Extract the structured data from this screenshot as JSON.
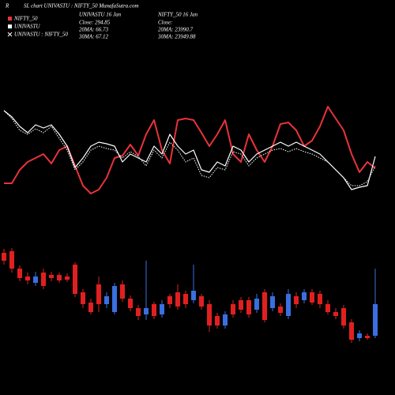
{
  "chart_data": {
    "type": "line_candlestick",
    "title_parts": [
      "R",
      "SL chart UNIVASTU : NIFTY_50 MunafaSutra.com"
    ],
    "legend": [
      {
        "name": "NIFTY_50",
        "symbol": "square",
        "color": "#e8333a"
      },
      {
        "name": "UNIVASTU",
        "symbol": "square",
        "color": "#ffffff"
      },
      {
        "name": "UNIVASTU : NIFTY_50",
        "symbol": "cross",
        "color": "#ffffff"
      }
    ],
    "info": [
      {
        "title": "UNIVASTU 16 Jan",
        "lines": [
          "Close: 294.85",
          "20MA: 66.73",
          "30MA: 67.12"
        ]
      },
      {
        "title": "NIFTY_50 16 Jan",
        "lines": [
          "Close:",
          "20MA: 23990.7",
          "30MA: 23949.88"
        ]
      }
    ],
    "ylim": [
      0,
      130
    ],
    "series": [
      {
        "color": "#e8333a",
        "style": "solid",
        "width": 2,
        "values": [
          28,
          28,
          45,
          55,
          60,
          65,
          53,
          70,
          75,
          50,
          25,
          15,
          20,
          35,
          60,
          63,
          77,
          63,
          90,
          108,
          70,
          53,
          108,
          110,
          108,
          92,
          75,
          90,
          108,
          65,
          55,
          90,
          70,
          55,
          75,
          103,
          105,
          95,
          75,
          82,
          100,
          125,
          110,
          95,
          65,
          42,
          55,
          47
        ]
      },
      {
        "color": "#ffffff",
        "style": "solid",
        "width": 1.2,
        "values": [
          120,
          112,
          100,
          92,
          102,
          98,
          102,
          90,
          75,
          48,
          60,
          75,
          80,
          78,
          75,
          55,
          65,
          60,
          55,
          75,
          65,
          90,
          75,
          65,
          70,
          45,
          42,
          55,
          50,
          75,
          70,
          55,
          65,
          70,
          75,
          80,
          75,
          80,
          75,
          70,
          65,
          55,
          45,
          35,
          20,
          23,
          25,
          62
        ]
      },
      {
        "color": "#ffffff",
        "style": "dotted",
        "width": 1,
        "values": [
          120,
          110,
          95,
          90,
          97,
          92,
          100,
          85,
          70,
          45,
          55,
          70,
          75,
          72,
          70,
          60,
          68,
          62,
          50,
          70,
          60,
          80,
          70,
          55,
          60,
          38,
          35,
          48,
          45,
          68,
          65,
          50,
          60,
          65,
          70,
          72,
          68,
          72,
          68,
          65,
          60,
          55,
          45,
          35,
          25,
          25,
          30,
          50
        ]
      }
    ],
    "candle_ylim": [
      0,
      140
    ],
    "up_color": "#3a6fe0",
    "down_color": "#e02020",
    "open": [
      130,
      132,
      110,
      100,
      92,
      105,
      102,
      102,
      100,
      115,
      80,
      67,
      90,
      65,
      55,
      90,
      72,
      60,
      52,
      65,
      52,
      75,
      80,
      78,
      70,
      75,
      65,
      50,
      38,
      65,
      70,
      70,
      58,
      80,
      60,
      62,
      50,
      75,
      70,
      80,
      78,
      65,
      55,
      60,
      42,
      22,
      25,
      25
    ],
    "high": [
      135,
      136,
      114,
      105,
      106,
      110,
      106,
      105,
      104,
      118,
      84,
      72,
      100,
      80,
      92,
      95,
      76,
      64,
      120,
      68,
      70,
      78,
      90,
      82,
      115,
      78,
      70,
      54,
      56,
      70,
      74,
      74,
      78,
      84,
      80,
      66,
      84,
      80,
      84,
      84,
      82,
      70,
      60,
      64,
      46,
      32,
      28,
      110
    ],
    "low": [
      115,
      105,
      94,
      90,
      88,
      84,
      94,
      92,
      93,
      74,
      60,
      52,
      55,
      60,
      52,
      68,
      56,
      45,
      45,
      46,
      48,
      60,
      58,
      60,
      66,
      58,
      30,
      34,
      34,
      48,
      54,
      48,
      54,
      42,
      56,
      50,
      46,
      60,
      66,
      64,
      60,
      52,
      46,
      34,
      16,
      18,
      20,
      22
    ],
    "close": [
      120,
      110,
      98,
      95,
      100,
      88,
      98,
      95,
      96,
      78,
      65,
      55,
      65,
      75,
      88,
      72,
      60,
      50,
      60,
      50,
      65,
      65,
      62,
      65,
      82,
      62,
      38,
      38,
      52,
      52,
      58,
      52,
      72,
      45,
      75,
      54,
      78,
      65,
      80,
      67,
      65,
      55,
      50,
      38,
      20,
      28,
      22,
      65
    ]
  }
}
